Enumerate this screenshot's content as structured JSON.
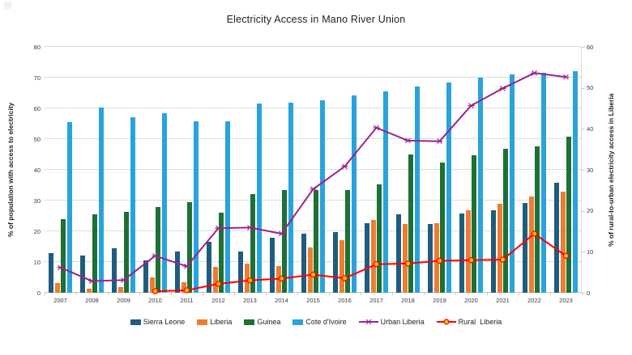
{
  "title": "Electricity Access in Mano River Union",
  "left_axis": {
    "label": "% of population with access to electricity",
    "ticks": [
      0,
      10,
      20,
      30,
      40,
      50,
      60,
      70,
      80
    ]
  },
  "right_axis": {
    "label": "% of rural-to-urban electricity access in Liberia",
    "ticks": [
      0,
      10,
      20,
      30,
      40,
      50,
      60
    ]
  },
  "chart_data": {
    "type": "bar",
    "title": "Electricity Access in Mano River Union",
    "xlabel": "",
    "ylabel": "% of population with access to electricity",
    "y2label": "% of rural-to-urban electricity access in Liberia",
    "ylim": [
      0,
      80
    ],
    "y2lim": [
      0,
      60
    ],
    "grid": true,
    "legend_position": "bottom",
    "categories": [
      "2007",
      "2008",
      "2009",
      "2010",
      "2011",
      "2012",
      "2013",
      "2014",
      "2015",
      "2016",
      "2017",
      "2018",
      "2019",
      "2020",
      "2021",
      "2022",
      "2023"
    ],
    "series": [
      {
        "name": "Sierra Leone",
        "color": "#1F5C7E",
        "values": [
          13,
          12,
          14.5,
          10.5,
          13.3,
          16.5,
          13.5,
          18,
          19.2,
          19.7,
          22.7,
          25.6,
          22.3,
          25.7,
          26.8,
          29.3,
          35.7
        ]
      },
      {
        "name": "Liberia",
        "color": "#ED7D31",
        "values": [
          3.1,
          1.3,
          1.8,
          5,
          3.4,
          8.5,
          9.5,
          8.7,
          14.7,
          17.2,
          23.8,
          22.4,
          22.6,
          26.8,
          29,
          31.2,
          32.8
        ]
      },
      {
        "name": "Guinea",
        "color": "#1E7034",
        "values": [
          24,
          25.5,
          26.4,
          28,
          29.5,
          26,
          32.2,
          33.4,
          33.5,
          33.4,
          35.3,
          45,
          42.3,
          44.7,
          46.8,
          47.6,
          50.8
        ]
      },
      {
        "name": "Cote d'Ivoire",
        "color": "#29A3DC",
        "values": [
          55.4,
          60.2,
          57.2,
          58.5,
          55.8,
          55.7,
          61.5,
          61.9,
          62.6,
          64.3,
          65.6,
          67,
          68.4,
          69.9,
          71.1,
          71.6,
          72
        ]
      }
    ],
    "line_series": [
      {
        "name": "Urban Liberia",
        "type": "line",
        "axis": "left",
        "color": "#99248E",
        "marker": "asterisk",
        "values": [
          8.2,
          3.8,
          4.1,
          12,
          8.6,
          21,
          21.2,
          19.2,
          33.7,
          41.1,
          53.7,
          49.5,
          49.3,
          60.9,
          66.5,
          71.5,
          70.2
        ]
      },
      {
        "name": "Rural  Liberia",
        "type": "line",
        "axis": "left",
        "color": "#FF0000",
        "marker": "circle",
        "marker_fill": "#FFC000",
        "values": [
          null,
          null,
          null,
          0.5,
          0.8,
          2.9,
          4,
          4.6,
          5.9,
          4.7,
          9.3,
          9.5,
          10.4,
          10.6,
          10.8,
          19.2,
          12
        ]
      }
    ]
  }
}
